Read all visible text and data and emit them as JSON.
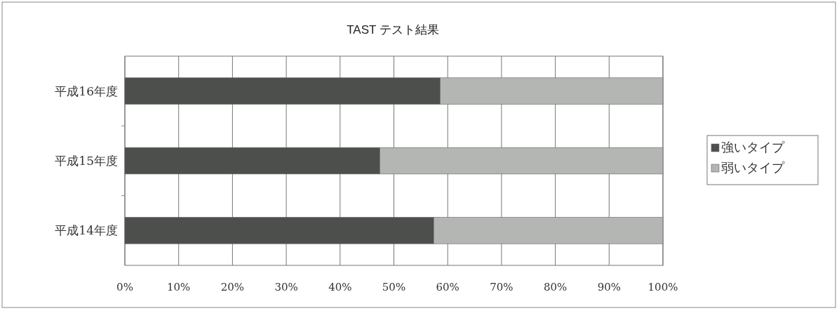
{
  "chart_data": {
    "type": "bar",
    "orientation": "horizontal",
    "stacked": true,
    "title": "TAST テスト結果",
    "categories": [
      "平成16年度",
      "平成15年度",
      "平成14年度"
    ],
    "series": [
      {
        "name": "強いタイプ",
        "color": "#4d4f4d",
        "values": [
          58.6,
          47.4,
          57.4
        ]
      },
      {
        "name": "弱いタイプ",
        "color": "#b4b6b4",
        "values": [
          41.4,
          52.6,
          42.6
        ]
      }
    ],
    "xlim": [
      0,
      100
    ],
    "xticks": [
      {
        "value": 0,
        "label": "0%"
      },
      {
        "value": 10,
        "label": "10%"
      },
      {
        "value": 20,
        "label": "20%"
      },
      {
        "value": 30,
        "label": "30%"
      },
      {
        "value": 40,
        "label": "40%"
      },
      {
        "value": 50,
        "label": "50%"
      },
      {
        "value": 60,
        "label": "60%"
      },
      {
        "value": 70,
        "label": "70%"
      },
      {
        "value": 80,
        "label": "80%"
      },
      {
        "value": 90,
        "label": "90%"
      },
      {
        "value": 100,
        "label": "100%"
      }
    ],
    "grid": "x",
    "legend": "right"
  }
}
